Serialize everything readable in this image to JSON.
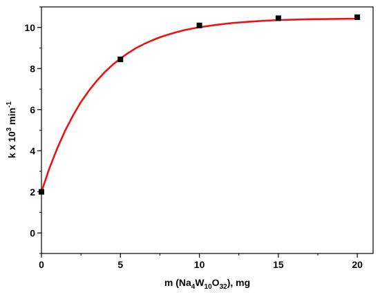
{
  "chart_data": {
    "type": "scatter",
    "xlabel": {
      "pre": "m (Na",
      "sub1": "4",
      "mid1": "W",
      "sub2": "10",
      "mid2": "O",
      "sub3": "32",
      "post": "), mg"
    },
    "ylabel": {
      "pre": "k x 10",
      "sup1": "3",
      "mid": " min",
      "sup2": "-1"
    },
    "xlim": [
      0,
      21
    ],
    "ylim": [
      -1,
      11
    ],
    "x_ticks": [
      0,
      5,
      10,
      15,
      20
    ],
    "y_ticks": [
      0,
      2,
      4,
      6,
      8,
      10
    ],
    "grid": false,
    "series": [
      {
        "kind": "points",
        "color": "#000000",
        "x": [
          0,
          5,
          10,
          15,
          20
        ],
        "y": [
          2.0,
          8.45,
          10.1,
          10.45,
          10.5
        ]
      },
      {
        "kind": "fit-line",
        "color": "#ee1111",
        "x": [
          0,
          0.5,
          1,
          1.5,
          2,
          2.5,
          3,
          3.5,
          4,
          4.5,
          5,
          5.5,
          6,
          6.5,
          7,
          7.5,
          8,
          8.5,
          9,
          9.5,
          10,
          11,
          12,
          13,
          14,
          15,
          16,
          17,
          18,
          19,
          20
        ],
        "y": [
          2.0,
          3.14,
          4.12,
          4.98,
          5.72,
          6.37,
          6.92,
          7.4,
          7.82,
          8.18,
          8.49,
          8.76,
          9.0,
          9.2,
          9.37,
          9.52,
          9.65,
          9.76,
          9.86,
          9.94,
          10.01,
          10.12,
          10.21,
          10.27,
          10.32,
          10.36,
          10.38,
          10.4,
          10.41,
          10.42,
          10.43
        ]
      }
    ]
  }
}
